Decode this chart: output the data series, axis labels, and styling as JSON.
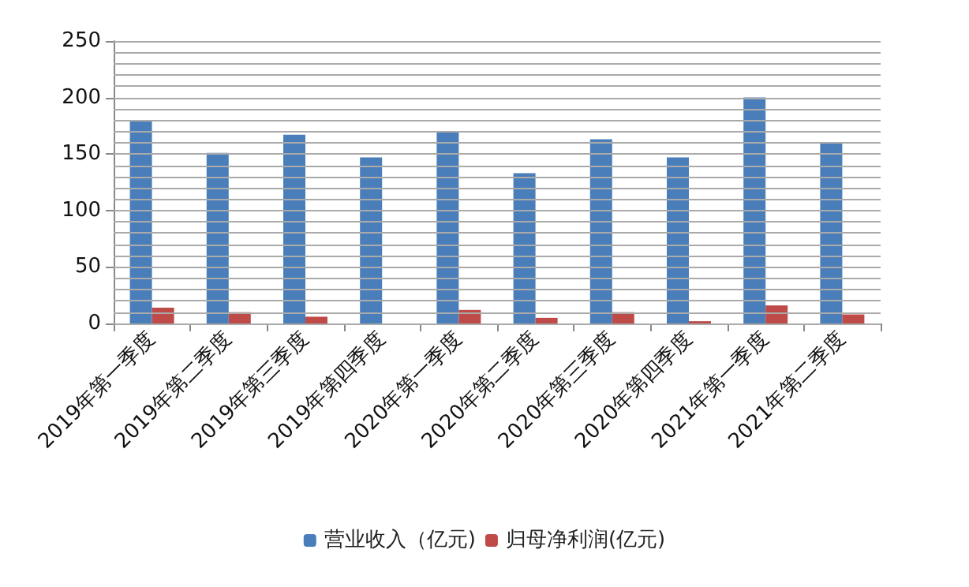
{
  "chart_data": {
    "type": "bar",
    "categories": [
      "2019年第一季度",
      "2019年第二季度",
      "2019年第三季度",
      "2019年第四季度",
      "2020年第一季度",
      "2020年第二季度",
      "2020年第三季度",
      "2020年第四季度",
      "2021年第一季度",
      "2021年第二季度"
    ],
    "series": [
      {
        "name": "营业收入（亿元)",
        "color": "#4a7ebb",
        "values": [
          179,
          151,
          167,
          147,
          169,
          133,
          163,
          147,
          200,
          160
        ]
      },
      {
        "name": "归母净利润(亿元)",
        "color": "#be4b48",
        "values": [
          14,
          10,
          6,
          0,
          12,
          5,
          10,
          2,
          16,
          8
        ]
      }
    ],
    "ylim": [
      0,
      250
    ],
    "yticks": [
      0,
      {
        "value": 10,
        "label": null
      },
      {
        "value": 20,
        "label": null
      },
      {
        "value": 30,
        "label": null
      },
      {
        "value": 40,
        "label": null
      },
      50,
      {
        "value": 60,
        "label": null
      },
      {
        "value": 70,
        "label": null
      },
      {
        "value": 80,
        "label": null
      },
      {
        "value": 90,
        "label": null
      },
      100,
      {
        "value": 110,
        "label": null
      },
      {
        "value": 120,
        "label": null
      },
      {
        "value": 130,
        "label": null
      },
      {
        "value": 140,
        "label": null
      },
      150,
      {
        "value": 160,
        "label": null
      },
      {
        "value": 170,
        "label": null
      },
      {
        "value": 180,
        "label": null
      },
      {
        "value": 190,
        "label": null
      },
      200,
      {
        "value": 210,
        "label": null
      },
      {
        "value": 220,
        "label": null
      },
      {
        "value": 230,
        "label": null
      },
      {
        "value": 240,
        "label": null
      },
      250
    ],
    "grid": "y",
    "legend": "bottom"
  }
}
